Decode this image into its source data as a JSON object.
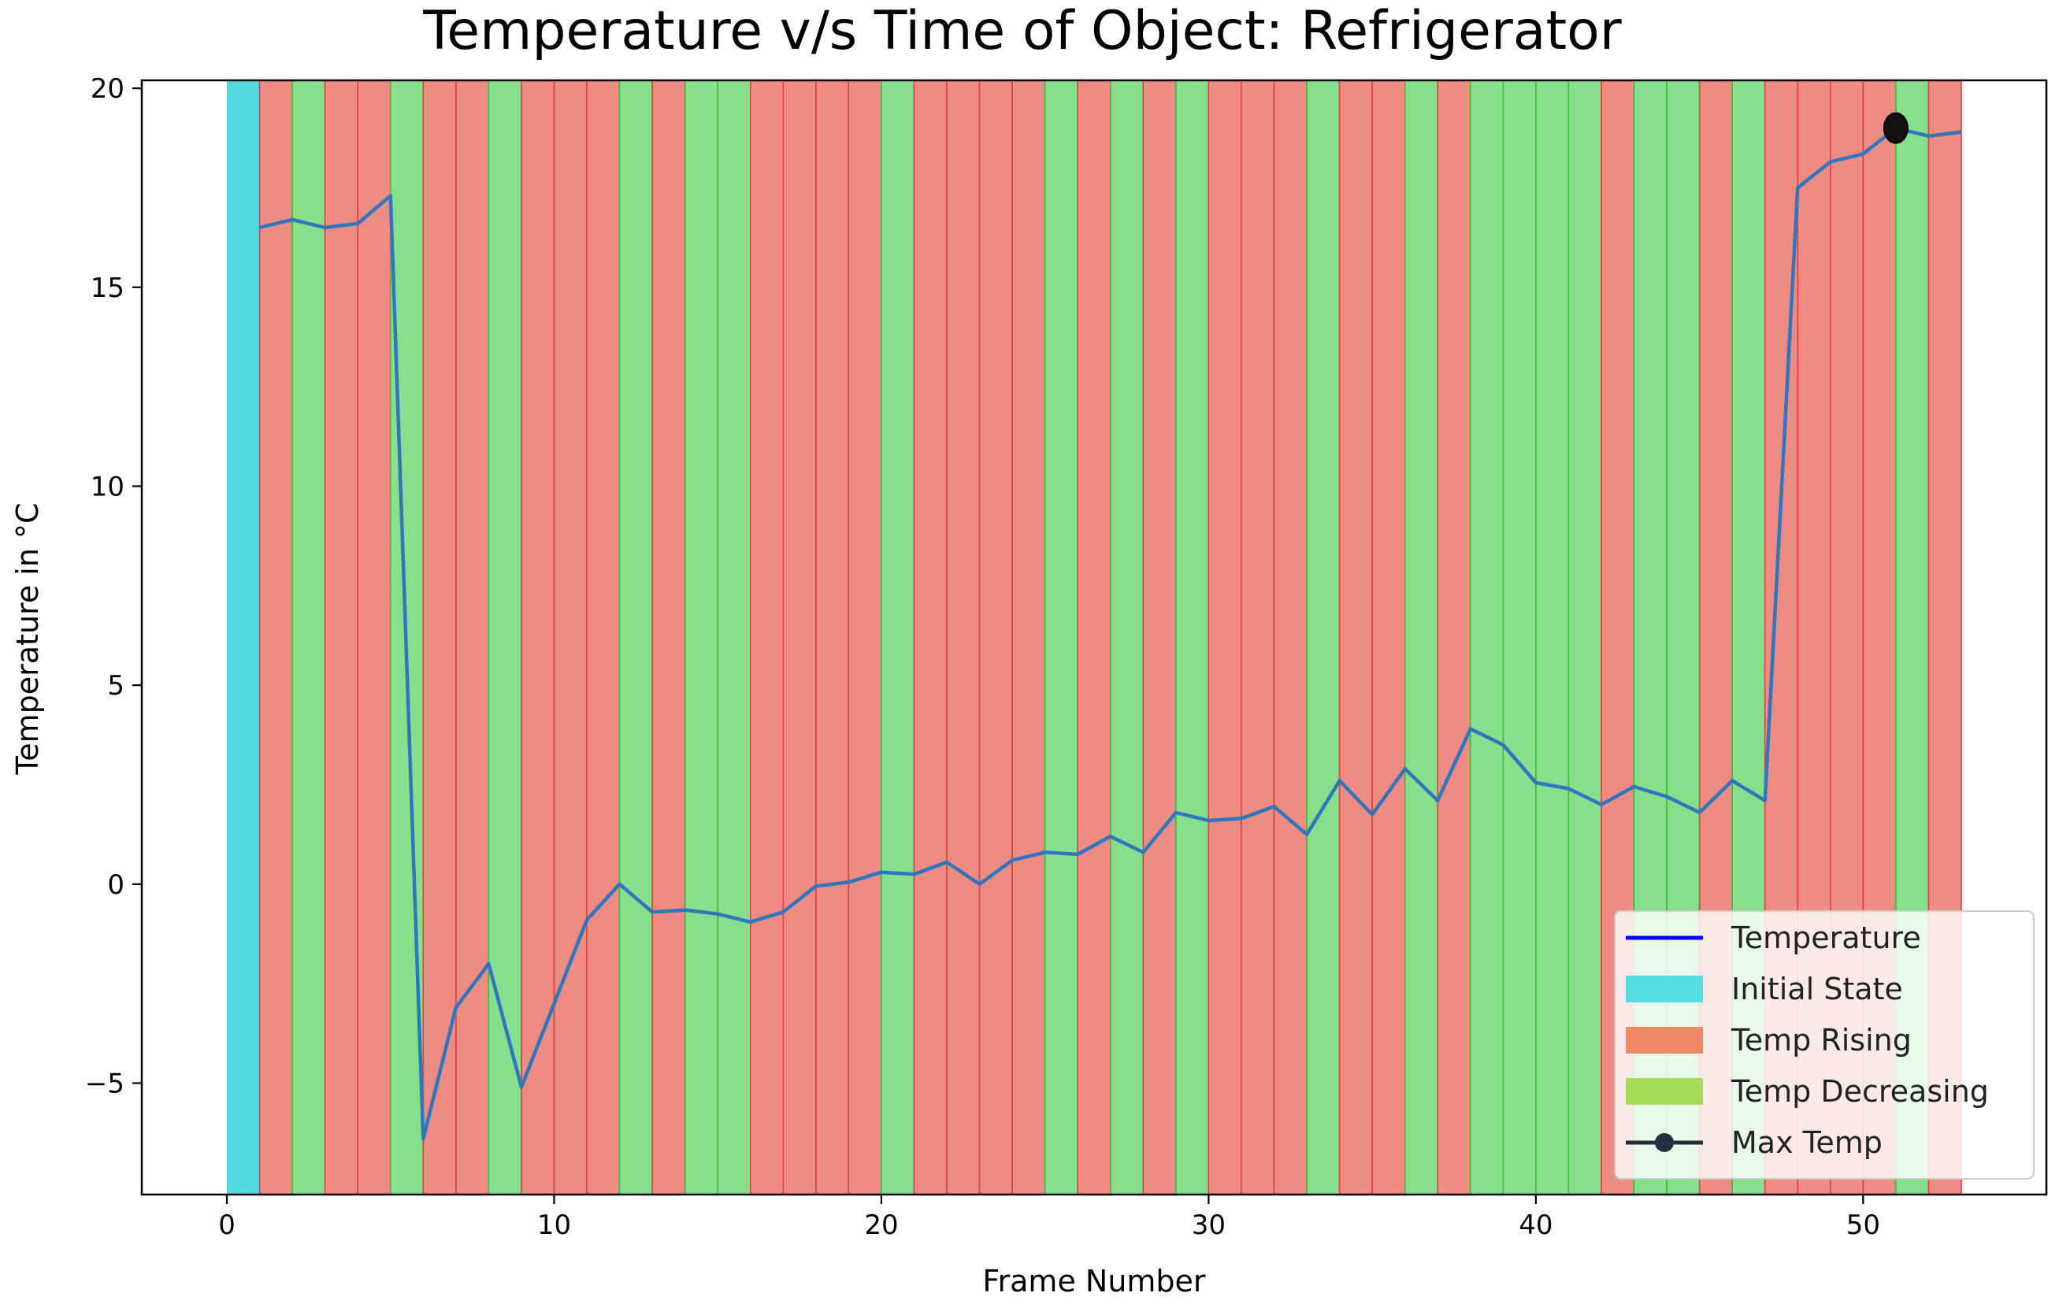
{
  "chart_data": {
    "type": "line",
    "title": "Temperature v/s Time of Object: Refrigerator",
    "xlabel": "Frame Number",
    "ylabel": "Temperature in °C",
    "xlim": [
      -2.6,
      55.6
    ],
    "ylim": [
      -7.8,
      20.2
    ],
    "xticks": [
      0,
      10,
      20,
      30,
      40,
      50
    ],
    "yticks": [
      -5,
      0,
      5,
      10,
      15,
      20
    ],
    "ytick_labels": [
      "−5",
      "0",
      "5",
      "10",
      "15",
      "20"
    ],
    "grid": false,
    "legend_position": "lower-right",
    "legend": [
      {
        "label": "Temperature",
        "kind": "line",
        "color": "#0000ff"
      },
      {
        "label": "Initial State",
        "kind": "patch",
        "color": "#56dde2"
      },
      {
        "label": "Temp Rising",
        "kind": "patch",
        "color": "#ee8866"
      },
      {
        "label": "Temp Decreasing",
        "kind": "patch",
        "color": "#a6dd55"
      },
      {
        "label": "Max Temp",
        "kind": "marker-line",
        "color": "#203040"
      }
    ],
    "series": [
      {
        "name": "Temperature",
        "color": "#2e76be",
        "x": [
          1,
          2,
          3,
          4,
          5,
          6,
          7,
          8,
          9,
          10,
          11,
          12,
          13,
          14,
          15,
          16,
          17,
          18,
          19,
          20,
          21,
          22,
          23,
          24,
          25,
          26,
          27,
          28,
          29,
          30,
          31,
          32,
          33,
          34,
          35,
          36,
          37,
          38,
          39,
          40,
          41,
          42,
          43,
          44,
          45,
          46,
          47,
          48,
          49,
          50,
          51,
          52,
          53
        ],
        "values": [
          16.5,
          16.7,
          16.5,
          16.6,
          17.3,
          -6.4,
          -3.1,
          -2.0,
          -5.1,
          -3.0,
          -0.9,
          0.0,
          -0.7,
          -0.65,
          -0.75,
          -0.95,
          -0.7,
          -0.05,
          0.05,
          0.3,
          0.25,
          0.55,
          0.0,
          0.6,
          0.8,
          0.75,
          1.2,
          0.8,
          1.8,
          1.6,
          1.65,
          1.95,
          1.25,
          2.6,
          1.75,
          2.9,
          2.1,
          3.9,
          3.5,
          2.55,
          2.4,
          2.0,
          2.45,
          2.2,
          1.8,
          2.6,
          2.1,
          17.5,
          18.15,
          18.35,
          19.0,
          18.8,
          18.9
        ]
      }
    ],
    "max_point": {
      "name": "Max Temp",
      "x": 51,
      "y": 19.0
    },
    "bands": {
      "initial_state": {
        "start": 0,
        "end": 1,
        "color": "#52dce0",
        "edge": "#52dce0"
      },
      "rising_color": "#ee8b82",
      "rising_edge": "#e04040",
      "decreasing_color": "#86df8a",
      "decreasing_edge": "#3cbf3c",
      "states": [
        "R",
        "D",
        "R",
        "R",
        "D",
        "R",
        "R",
        "D",
        "R",
        "R",
        "R",
        "D",
        "R",
        "D",
        "D",
        "R",
        "R",
        "R",
        "R",
        "D",
        "R",
        "R",
        "R",
        "R",
        "D",
        "R",
        "D",
        "R",
        "D",
        "R",
        "R",
        "R",
        "D",
        "R",
        "R",
        "D",
        "R",
        "D",
        "D",
        "D",
        "D",
        "R",
        "D",
        "D",
        "R",
        "D",
        "R",
        "R",
        "R",
        "R",
        "D",
        "R"
      ]
    }
  }
}
